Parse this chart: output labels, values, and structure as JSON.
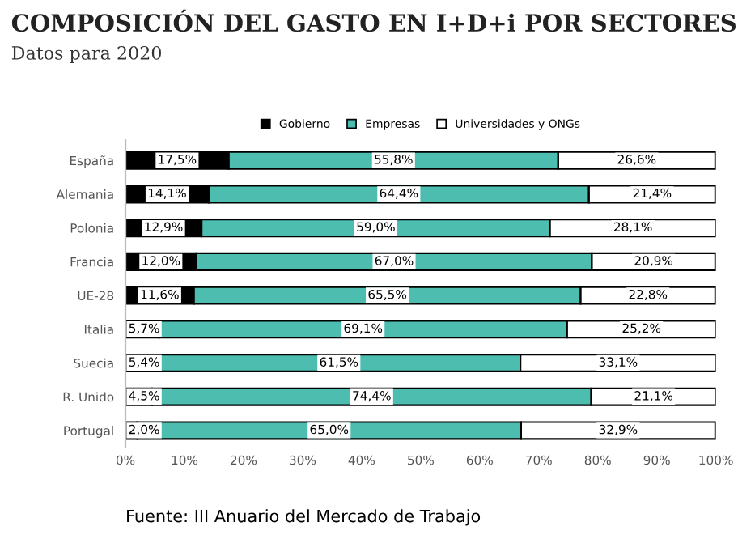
{
  "chart_data": {
    "type": "bar",
    "orientation": "horizontal",
    "stacked": true,
    "title": "COMPOSICIÓN DEL GASTO EN I+D+i POR SECTORES",
    "subtitle": "Datos para 2020",
    "categories": [
      "España",
      "Alemania",
      "Polonia",
      "Francia",
      "UE-28",
      "Italia",
      "Suecia",
      "R. Unido",
      "Portugal"
    ],
    "series": [
      {
        "name": "Gobierno",
        "color": "#000000",
        "values": [
          17.5,
          14.1,
          12.9,
          12.0,
          11.6,
          5.7,
          5.4,
          4.5,
          2.0
        ],
        "value_labels": [
          "17,5%",
          "14,1%",
          "12,9%",
          "12,0%",
          "11,6%",
          "5,7%",
          "5,4%",
          "4,5%",
          "2,0%"
        ]
      },
      {
        "name": "Empresas",
        "color": "#4dbdb0",
        "values": [
          55.8,
          64.4,
          59.0,
          67.0,
          65.5,
          69.1,
          61.5,
          74.4,
          65.0
        ],
        "value_labels": [
          "55,8%",
          "64,4%",
          "59,0%",
          "67,0%",
          "65,5%",
          "69,1%",
          "61,5%",
          "74,4%",
          "65,0%"
        ]
      },
      {
        "name": "Universidades y ONGs",
        "color": "#ffffff",
        "values": [
          26.6,
          21.4,
          28.1,
          20.9,
          22.8,
          25.2,
          33.1,
          21.1,
          32.9
        ],
        "value_labels": [
          "26,6%",
          "21,4%",
          "28,1%",
          "20,9%",
          "22,8%",
          "25,2%",
          "33,1%",
          "21,1%",
          "32,9%"
        ]
      }
    ],
    "xlim": [
      0,
      100
    ],
    "xticks": [
      {
        "value": 0,
        "label": "0%"
      },
      {
        "value": 10,
        "label": "10%"
      },
      {
        "value": 20,
        "label": "20%"
      },
      {
        "value": 30,
        "label": "30%"
      },
      {
        "value": 40,
        "label": "40%"
      },
      {
        "value": 50,
        "label": "50%"
      },
      {
        "value": 60,
        "label": "60%"
      },
      {
        "value": 70,
        "label": "70%"
      },
      {
        "value": 80,
        "label": "80%"
      },
      {
        "value": 90,
        "label": "90%"
      },
      {
        "value": 100,
        "label": "100%"
      }
    ],
    "legend": "top",
    "grid": false,
    "annotations": [
      "Fuente: III Anuario del Mercado de Trabajo"
    ]
  }
}
